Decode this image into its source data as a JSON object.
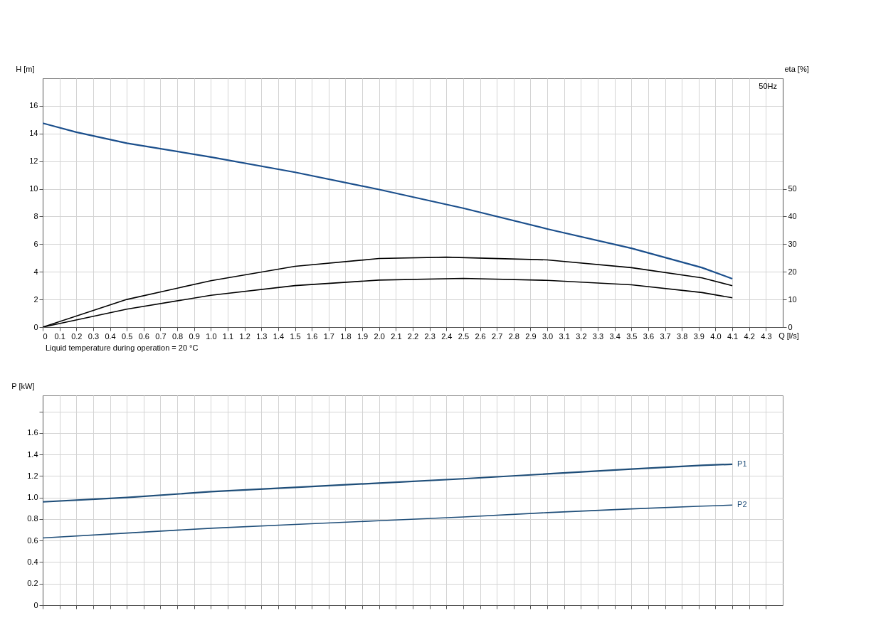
{
  "chart_data": [
    {
      "type": "line",
      "xlabel": "Q [l/s]",
      "ylabel": "H [m]",
      "y2label": "eta [%]",
      "xlim": [
        0,
        4.4
      ],
      "xticks": [
        0,
        0.1,
        0.2,
        0.3,
        0.4,
        0.5,
        0.6,
        0.7,
        0.8,
        0.9,
        {
          "value": 1,
          "label": "1.0"
        },
        1.1,
        1.2,
        1.3,
        1.4,
        1.5,
        1.6,
        1.7,
        1.8,
        1.9,
        {
          "value": 2,
          "label": "2.0"
        },
        2.1,
        2.2,
        2.3,
        2.4,
        2.5,
        2.6,
        2.7,
        2.8,
        2.9,
        {
          "value": 3,
          "label": "3.0"
        },
        3.1,
        3.2,
        3.3,
        3.4,
        3.5,
        3.6,
        3.7,
        3.8,
        3.9,
        {
          "value": 4,
          "label": "4.0"
        },
        4.1,
        4.2,
        4.3
      ],
      "ylim": [
        0,
        18
      ],
      "yticks": [
        0,
        2,
        4,
        6,
        8,
        10,
        12,
        14,
        16
      ],
      "y2lim": [
        0,
        90
      ],
      "y2ticks": [
        0,
        10,
        20,
        30,
        40,
        50
      ],
      "grid": true,
      "annotations": [
        "Liquid temperature during operation = 20 °C",
        "50Hz"
      ],
      "series": [
        {
          "color": "#1b4f8c",
          "x": [
            0,
            0.2,
            0.5,
            1.0,
            1.5,
            2.0,
            2.5,
            3.0,
            3.5,
            3.92,
            4.1
          ],
          "values": [
            14.75,
            14.1,
            13.3,
            12.3,
            11.2,
            9.95,
            8.6,
            7.1,
            5.7,
            4.3,
            3.5
          ]
        },
        {
          "color": "#000000",
          "axis": "y2",
          "x": [
            0,
            0.5,
            1.0,
            1.5,
            2.0,
            2.4,
            3.0,
            3.5,
            3.92,
            4.1
          ],
          "values": [
            0,
            10,
            16.8,
            22,
            24.8,
            25.3,
            24.3,
            21.5,
            17.8,
            15
          ]
        },
        {
          "color": "#000000",
          "axis": "y2",
          "x": [
            0,
            0.5,
            1.0,
            1.5,
            2.0,
            2.5,
            3.0,
            3.5,
            3.92,
            4.1
          ],
          "values": [
            0,
            6.5,
            11.5,
            15,
            17,
            17.6,
            16.9,
            15.3,
            12.5,
            10.6
          ]
        }
      ]
    },
    {
      "type": "line",
      "ylabel": "P [kW]",
      "tick_labels": "y",
      "xlim": [
        0,
        4.4
      ],
      "xticks": [
        0,
        0.1,
        0.2,
        0.3,
        0.4,
        0.5,
        0.6,
        0.7,
        0.8,
        0.9,
        1.0,
        1.1,
        1.2,
        1.3,
        1.4,
        1.5,
        1.6,
        1.7,
        1.8,
        1.9,
        2.0,
        2.1,
        2.2,
        2.3,
        2.4,
        2.5,
        2.6,
        2.7,
        2.8,
        2.9,
        3.0,
        3.1,
        3.2,
        3.3,
        3.4,
        3.5,
        3.6,
        3.7,
        3.8,
        3.9,
        4.0,
        4.1,
        4.2,
        4.3
      ],
      "ylim": [
        0,
        1.95
      ],
      "yticks": [
        0,
        0.2,
        0.4,
        0.6,
        0.8,
        {
          "value": 1,
          "label": "1.0"
        },
        1.2,
        1.4,
        1.6,
        {
          "value": 1.8,
          "label": null
        }
      ],
      "grid": true,
      "legend": false,
      "series": [
        {
          "name": "P1",
          "color": "#1f4e79",
          "x": [
            0,
            0.5,
            1.0,
            1.5,
            2.0,
            2.5,
            3.0,
            3.5,
            3.92,
            4.1
          ],
          "values": [
            0.96,
            1.0,
            1.055,
            1.095,
            1.135,
            1.175,
            1.22,
            1.265,
            1.3,
            1.31
          ]
        },
        {
          "name": "P2",
          "color": "#1f4e79",
          "x": [
            0,
            0.5,
            1.0,
            1.5,
            2.0,
            2.5,
            3.0,
            3.5,
            3.92,
            4.1
          ],
          "values": [
            0.625,
            0.67,
            0.715,
            0.75,
            0.785,
            0.82,
            0.86,
            0.895,
            0.92,
            0.93
          ]
        }
      ]
    }
  ]
}
